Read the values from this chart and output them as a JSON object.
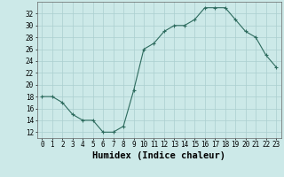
{
  "x": [
    0,
    1,
    2,
    3,
    4,
    5,
    6,
    7,
    8,
    9,
    10,
    11,
    12,
    13,
    14,
    15,
    16,
    17,
    18,
    19,
    20,
    21,
    22,
    23
  ],
  "y": [
    18,
    18,
    17,
    15,
    14,
    14,
    12,
    12,
    13,
    19,
    26,
    27,
    29,
    30,
    30,
    31,
    33,
    33,
    33,
    31,
    29,
    28,
    25,
    23
  ],
  "xlabel": "Humidex (Indice chaleur)",
  "ylim": [
    11,
    34
  ],
  "xlim": [
    -0.5,
    23.5
  ],
  "yticks": [
    12,
    14,
    16,
    18,
    20,
    22,
    24,
    26,
    28,
    30,
    32
  ],
  "xtick_labels": [
    "0",
    "1",
    "2",
    "3",
    "4",
    "5",
    "6",
    "7",
    "8",
    "9",
    "10",
    "11",
    "12",
    "13",
    "14",
    "15",
    "16",
    "17",
    "18",
    "19",
    "20",
    "21",
    "22",
    "23"
  ],
  "line_color": "#2d6b5e",
  "marker": "+",
  "bg_color": "#cce9e8",
  "grid_color": "#aacfcf",
  "xlabel_fontsize": 7.5,
  "tick_fontsize": 5.5
}
